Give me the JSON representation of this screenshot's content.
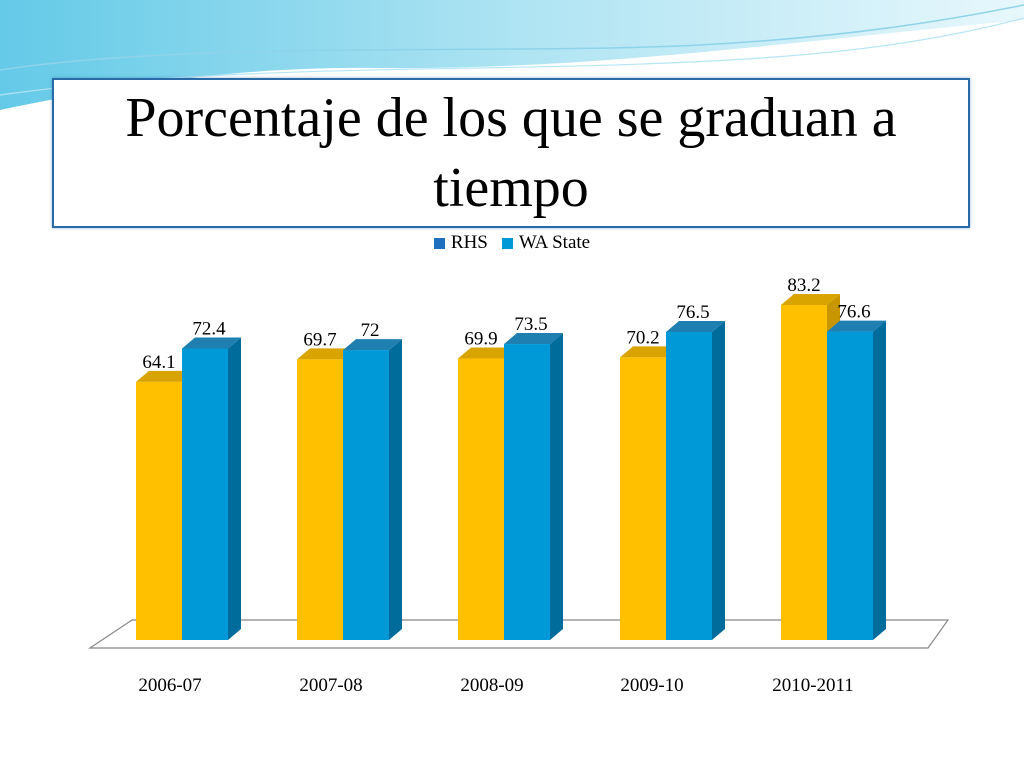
{
  "slide": {
    "title": "Porcentaje de los que se graduan a tiempo"
  },
  "colors": {
    "rhs": "#ffc000",
    "rhs_side": "#c89600",
    "rhs_top": "#d9a300",
    "wa": "#0099d8",
    "wa_side": "#006c9c",
    "wa_top": "#1f7fb0",
    "legend_rhs_swatch": "#1f6fbf",
    "legend_wa_swatch": "#0099d8",
    "title_border": "#2a6aa6"
  },
  "chart_data": {
    "type": "bar",
    "categories": [
      "2006-07",
      "2007-08",
      "2008-09",
      "2009-10",
      "2010-2011"
    ],
    "series": [
      {
        "name": "RHS",
        "values": [
          64.1,
          69.7,
          69.9,
          70.2,
          83.2
        ]
      },
      {
        "name": "WA State",
        "values": [
          72.4,
          72,
          73.5,
          76.5,
          76.6
        ]
      }
    ],
    "value_labels": [
      [
        "64.1",
        "69.7",
        "69.9",
        "70.2",
        "83.2"
      ],
      [
        "72.4",
        "72",
        "73.5",
        "76.5",
        "76.6"
      ]
    ],
    "title": "Porcentaje de los que se graduan a tiempo",
    "xlabel": "",
    "ylabel": "",
    "ylim": [
      0,
      90
    ],
    "legend_position": "top",
    "grid": false
  }
}
